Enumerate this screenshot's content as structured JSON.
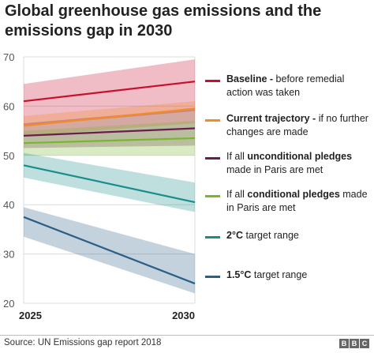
{
  "chart_data": {
    "type": "area",
    "title": "Global greenhouse gas emissions and the emissions gap in 2030",
    "x": [
      2025,
      2030
    ],
    "xlabels": [
      "2025",
      "2030"
    ],
    "ylim": [
      20,
      70
    ],
    "yticks": [
      20,
      30,
      40,
      50,
      60,
      70
    ],
    "grid": true,
    "legend_position": "right",
    "series": [
      {
        "id": "baseline",
        "bold": "Baseline -",
        "rest": " before remedial action was taken",
        "color": "#c8102e",
        "values": [
          61,
          65
        ],
        "band_low": [
          56,
          59
        ],
        "band_high": [
          64.5,
          69.5
        ]
      },
      {
        "id": "current",
        "bold": "Current trajectory -",
        "rest": " if no further changes are made",
        "color": "#f28c28",
        "values": [
          56,
          59.5
        ],
        "band_low": [
          54,
          56.5
        ],
        "band_high": [
          58,
          61
        ]
      },
      {
        "id": "unconditional",
        "pre": "If all ",
        "bold": "unconditional pledges",
        "rest": " made in Paris are met",
        "color": "#6b1e4d",
        "values": [
          54,
          55.5
        ],
        "band_low": [
          51.5,
          52
        ],
        "band_high": [
          56.5,
          59.5
        ]
      },
      {
        "id": "conditional",
        "pre": "If all ",
        "bold": "conditional pledges",
        "rest": " made in Paris are met",
        "color": "#76b82a",
        "values": [
          52.5,
          53.5
        ],
        "band_low": [
          50,
          50
        ],
        "band_high": [
          55,
          57
        ]
      },
      {
        "id": "two_c",
        "bold": "2°C",
        "rest": " target range",
        "color": "#1a8c8c",
        "values": [
          48,
          40.5
        ],
        "band_low": [
          45.5,
          38.5
        ],
        "band_high": [
          50.5,
          44.5
        ]
      },
      {
        "id": "one_five_c",
        "bold": "1.5°C",
        "rest": " target range",
        "color": "#2b5f85",
        "values": [
          37.5,
          24
        ],
        "band_low": [
          33.5,
          22
        ],
        "band_high": [
          39.5,
          30
        ]
      }
    ]
  },
  "footer": {
    "source": "Source: UN Emissions gap report 2018",
    "logo_letters": [
      "B",
      "B",
      "C"
    ]
  }
}
